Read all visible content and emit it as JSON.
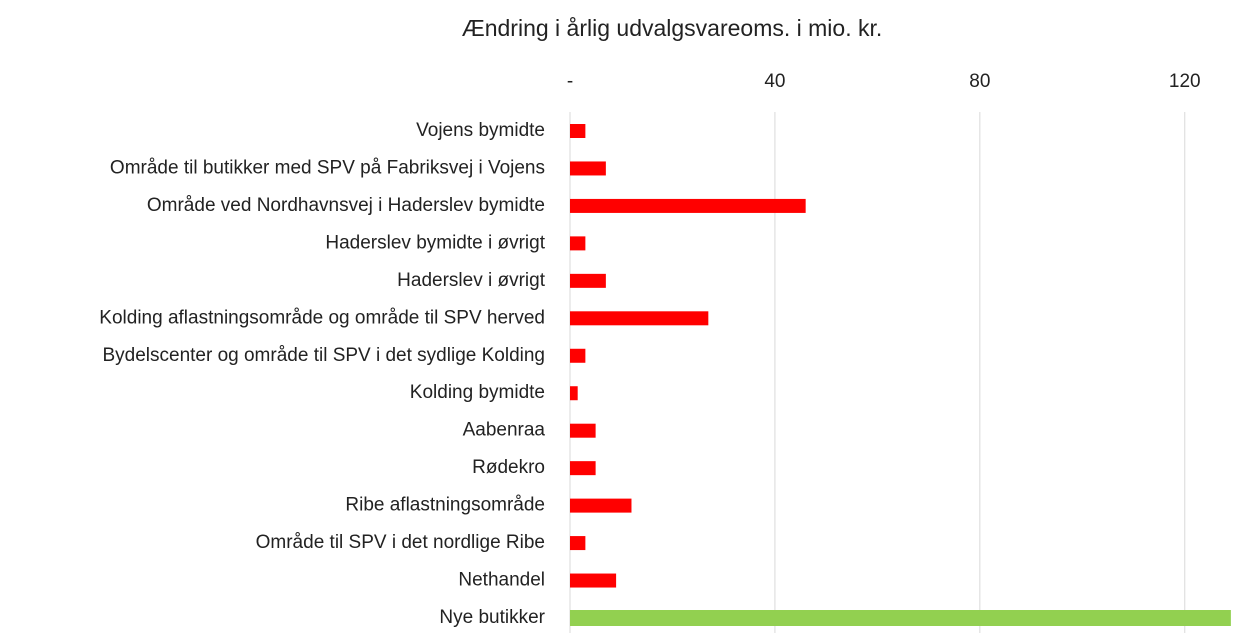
{
  "chart_data": {
    "type": "hbar",
    "title": "Ændring i årlig udvalgsvareoms. i mio. kr.",
    "categories": [
      "Vojens bymidte",
      "Område til butikker med SPV på Fabriksvej i Vojens",
      "Område ved Nordhavnsvej i Haderslev bymidte",
      "Haderslev bymidte i øvrigt",
      "Haderslev i øvrigt",
      "Kolding aflastningsområde og område til SPV herved",
      "Bydelscenter og område til SPV i det sydlige Kolding",
      "Kolding bymidte",
      "Aabenraa",
      "Rødekro",
      "Ribe aflastningsområde",
      "Område til SPV i det nordlige Ribe",
      "Nethandel",
      "Nye butikker"
    ],
    "values": [
      3,
      7,
      46,
      3,
      7,
      27,
      3,
      1.5,
      5,
      5,
      12,
      3,
      9,
      129
    ],
    "colors": [
      "#ff0000",
      "#ff0000",
      "#ff0000",
      "#ff0000",
      "#ff0000",
      "#ff0000",
      "#ff0000",
      "#ff0000",
      "#ff0000",
      "#ff0000",
      "#ff0000",
      "#ff0000",
      "#ff0000",
      "#92d050"
    ],
    "xlim": [
      0,
      130
    ],
    "xticks": [
      {
        "value": 0,
        "label": "-"
      },
      40,
      80,
      120
    ],
    "grid": true
  }
}
